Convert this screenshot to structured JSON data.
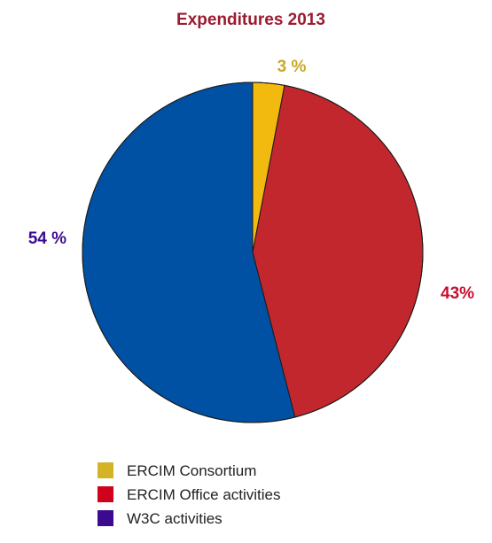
{
  "chart_data": {
    "type": "pie",
    "title": "Expenditures 2013",
    "title_color": "#9b1b30",
    "slices": [
      {
        "name": "ERCIM Consortium",
        "value": 3,
        "label": "3 %",
        "color": "#f2b90f",
        "legend_color": "#d4b327",
        "label_color": "#c9a92a"
      },
      {
        "name": "ERCIM Office activities",
        "value": 43,
        "label": "43%",
        "color": "#c1272d",
        "legend_color": "#d0021b",
        "label_color": "#c8102e"
      },
      {
        "name": "W3C activities",
        "value": 54,
        "label": "54 %",
        "color": "#0051a3",
        "legend_color": "#3b0a8f",
        "label_color": "#3b0a8f"
      }
    ],
    "legend_position": "bottom-left",
    "start_angle": "top",
    "direction": "clockwise"
  }
}
